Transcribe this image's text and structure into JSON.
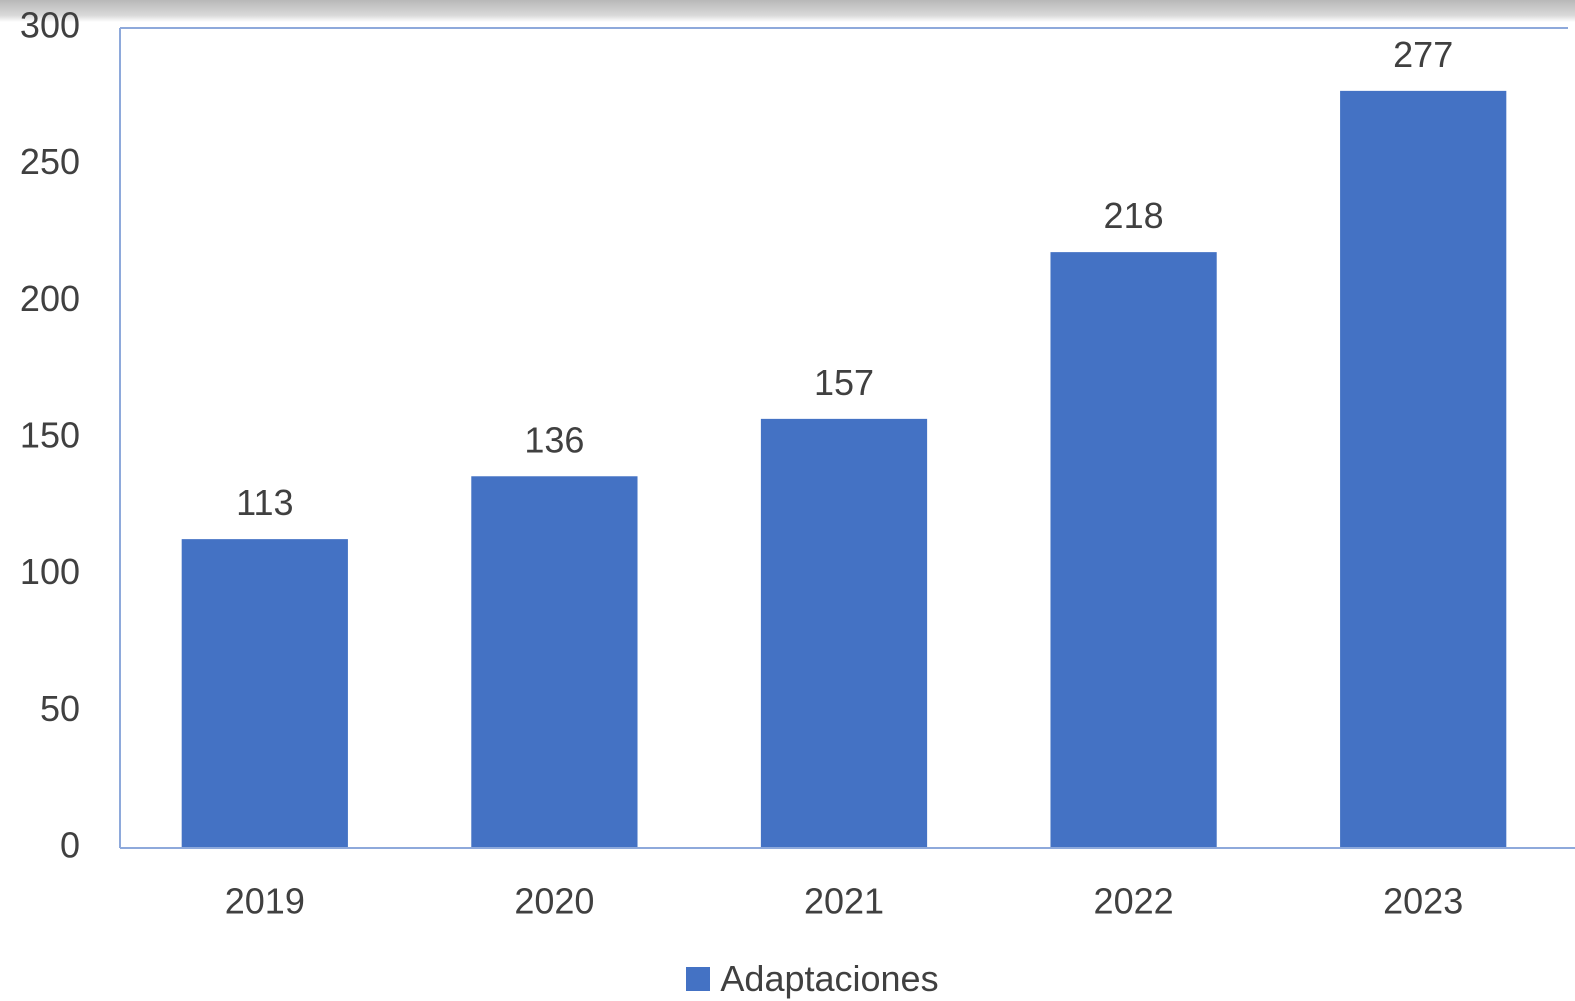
{
  "chart_data": {
    "type": "bar",
    "categories": [
      "2019",
      "2020",
      "2021",
      "2022",
      "2023"
    ],
    "series": [
      {
        "name": "Adaptaciones",
        "values": [
          113,
          136,
          157,
          218,
          277
        ],
        "color": "#4472C4"
      }
    ],
    "data_labels": [
      "113",
      "136",
      "157",
      "218",
      "277"
    ],
    "ylim": [
      0,
      300
    ],
    "yticks": [
      0,
      50,
      100,
      150,
      200,
      250,
      300
    ],
    "ytick_labels": [
      "0",
      "50",
      "100",
      "150",
      "200",
      "250",
      "300"
    ],
    "grid": false,
    "legend": {
      "position": "bottom",
      "label": "Adaptaciones"
    },
    "axis_color": "#8EA9DB",
    "text_color": "#404040"
  }
}
